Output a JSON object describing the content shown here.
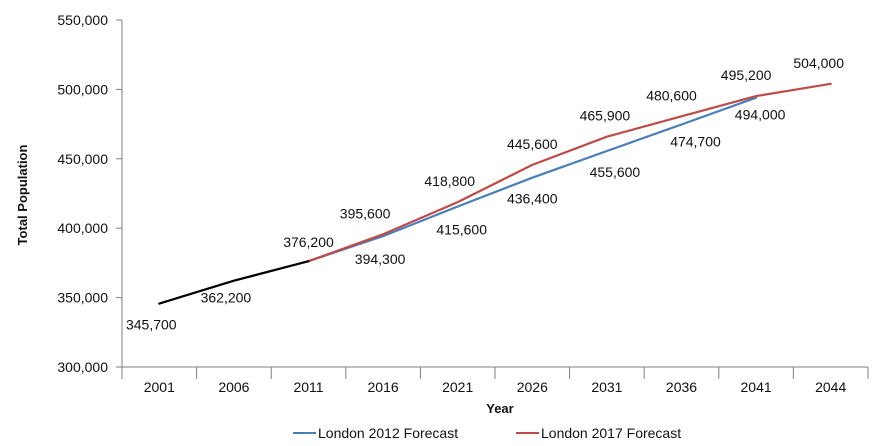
{
  "chart_data": {
    "type": "line",
    "categories": [
      "2001",
      "2006",
      "2011",
      "2016",
      "2021",
      "2026",
      "2031",
      "2036",
      "2041",
      "2044"
    ],
    "ylabel": "Total Population",
    "xlabel": "Year",
    "ylim": [
      300000,
      550000
    ],
    "yticks": [
      "300,000",
      "350,000",
      "400,000",
      "450,000",
      "500,000",
      "550,000"
    ],
    "ytick_values": [
      300000,
      350000,
      400000,
      450000,
      500000,
      550000
    ],
    "grid": false,
    "legend_position": "bottom",
    "series": [
      {
        "values": [
          345700,
          362200,
          376200,
          null,
          null,
          null,
          null,
          null,
          null,
          null
        ],
        "labels": [
          "345,700",
          "362,200",
          "376,200",
          "",
          "",
          "",
          "",
          "",
          "",
          ""
        ],
        "color": "#000000"
      },
      {
        "name": "London 2012 Forecast",
        "values": [
          null,
          null,
          376200,
          394300,
          415600,
          436400,
          455600,
          474700,
          494000,
          null
        ],
        "labels": [
          "",
          "",
          "",
          "394,300",
          "415,600",
          "436,400",
          "455,600",
          "474,700",
          "494,000",
          ""
        ],
        "color": "#4a7ebb"
      },
      {
        "name": "London 2017 Forecast",
        "values": [
          null,
          null,
          376200,
          395600,
          418800,
          445600,
          465900,
          480600,
          495200,
          504000
        ],
        "labels": [
          "",
          "",
          "",
          "395,600",
          "418,800",
          "445,600",
          "465,900",
          "480,600",
          "495,200",
          "504,000"
        ],
        "color": "#be4b48"
      }
    ]
  }
}
